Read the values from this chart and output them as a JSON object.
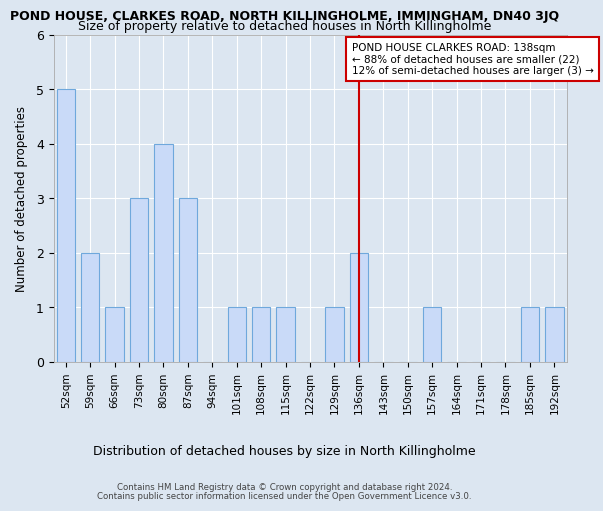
{
  "title": "POND HOUSE, CLARKES ROAD, NORTH KILLINGHOLME, IMMINGHAM, DN40 3JQ",
  "subtitle": "Size of property relative to detached houses in North Killingholme",
  "xlabel": "Distribution of detached houses by size in North Killingholme",
  "ylabel": "Number of detached properties",
  "footer1": "Contains HM Land Registry data © Crown copyright and database right 2024.",
  "footer2": "Contains public sector information licensed under the Open Government Licence v3.0.",
  "categories": [
    "52sqm",
    "59sqm",
    "66sqm",
    "73sqm",
    "80sqm",
    "87sqm",
    "94sqm",
    "101sqm",
    "108sqm",
    "115sqm",
    "122sqm",
    "129sqm",
    "136sqm",
    "143sqm",
    "150sqm",
    "157sqm",
    "164sqm",
    "171sqm",
    "178sqm",
    "185sqm",
    "192sqm"
  ],
  "values": [
    5,
    2,
    1,
    3,
    4,
    3,
    0,
    1,
    1,
    1,
    0,
    1,
    2,
    0,
    0,
    1,
    0,
    0,
    0,
    1,
    1
  ],
  "bar_color": "#c9daf8",
  "bar_edge_color": "#6fa8dc",
  "highlight_index": 12,
  "annotation_line1": "POND HOUSE CLARKES ROAD: 138sqm",
  "annotation_line2": "← 88% of detached houses are smaller (22)",
  "annotation_line3": "12% of semi-detached houses are larger (3) →",
  "annotation_box_color": "#ffffff",
  "annotation_box_edge_color": "#cc0000",
  "red_line_color": "#cc0000",
  "ylim": [
    0,
    6
  ],
  "yticks": [
    0,
    1,
    2,
    3,
    4,
    5,
    6
  ],
  "plot_bg_color": "#dce6f1",
  "fig_bg_color": "#dce6f1",
  "grid_color": "#ffffff",
  "title_fontsize": 9,
  "subtitle_fontsize": 9
}
